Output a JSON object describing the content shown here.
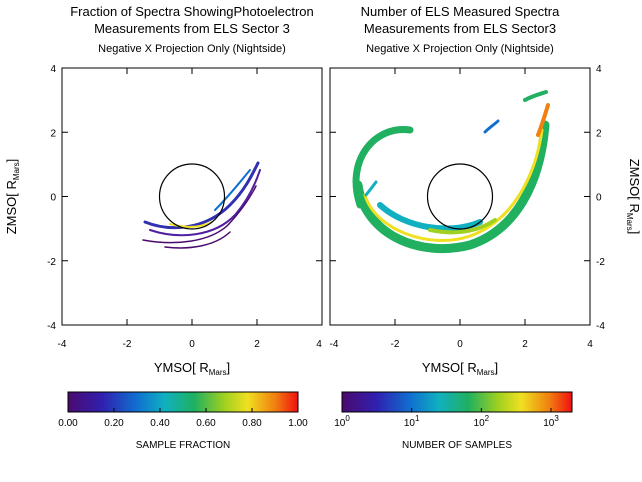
{
  "chart_data": [
    {
      "type": "heatmap",
      "title": [
        "Fraction of Spectra ShowingPhotoelectron",
        "Measurements from ELS Sector 3"
      ],
      "subtitle": "Negative X Projection Only (Nightside)",
      "xlabel": {
        "text": "YMSO[ R",
        "sub": "Mars",
        "end": "]"
      },
      "ylabel": {
        "text": "ZMSO[ R",
        "sub": "Mars",
        "end": "]"
      },
      "xlim": [
        -4,
        4
      ],
      "xticks": [
        -4,
        -2,
        0,
        2,
        4
      ],
      "ylim": [
        -4,
        4
      ],
      "yticks": [
        -4,
        -2,
        0,
        2,
        4
      ],
      "yaxis_side": "left",
      "colorbar": {
        "label": "SAMPLE FRACTION",
        "lim": [
          0,
          1
        ],
        "log": false,
        "ticks": [
          {
            "value": 0,
            "label": "0.00"
          },
          {
            "value": 0.2,
            "label": "0.20"
          },
          {
            "value": 0.4,
            "label": "0.40"
          },
          {
            "value": 0.6,
            "label": "0.60"
          },
          {
            "value": 0.8,
            "label": "0.80"
          },
          {
            "value": 1,
            "label": "1.00"
          }
        ]
      }
    },
    {
      "type": "heatmap",
      "title": [
        "Number of ELS Measured Spectra",
        "Measurements from ELS Sector3"
      ],
      "subtitle": "Negative X Projection Only (Nightside)",
      "xlabel": {
        "text": "YMSO[ R",
        "sub": "Mars",
        "end": "]"
      },
      "ylabel": {
        "text": "ZMSO[ R",
        "sub": "Mars",
        "end": "]"
      },
      "xlim": [
        -4,
        4
      ],
      "xticks": [
        -4,
        -2,
        0,
        2,
        4
      ],
      "ylim": [
        -4,
        4
      ],
      "yticks": [
        -4,
        -2,
        0,
        2,
        4
      ],
      "yaxis_side": "right",
      "colorbar": {
        "label": "NUMBER OF SAMPLES",
        "lim": [
          1,
          2000
        ],
        "log": true,
        "ticks": [
          {
            "value": 1,
            "label": "10",
            "sup": "0"
          },
          {
            "value": 10,
            "label": "10",
            "sup": "1"
          },
          {
            "value": 100,
            "label": "10",
            "sup": "2"
          },
          {
            "value": 1000,
            "label": "10",
            "sup": "3"
          }
        ]
      }
    }
  ]
}
